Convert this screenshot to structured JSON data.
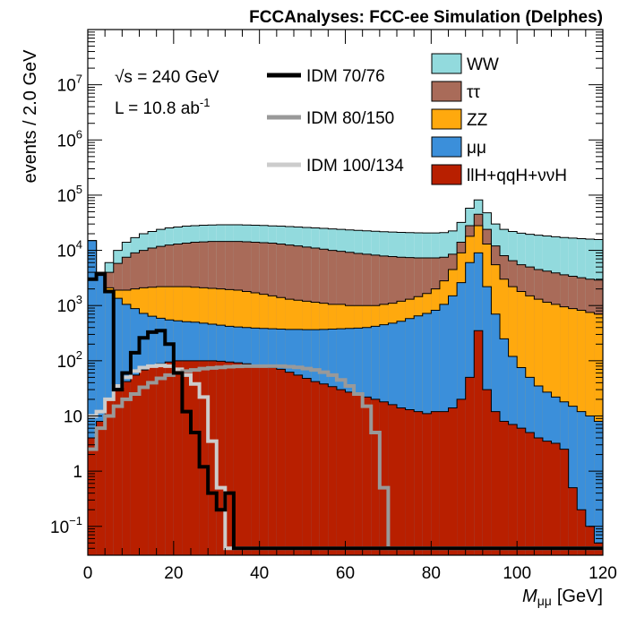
{
  "chart_data": {
    "type": "histogram",
    "title": "FCCAnalyses: FCC-ee Simulation (Delphes)",
    "xlabel": "M",
    "xlabel_sub": "μμ",
    "xlabel_unit": "[GeV]",
    "ylabel": "events / 2.0 GeV",
    "xlim": [
      0,
      120
    ],
    "ylim": [
      0.03,
      100000000
    ],
    "yscale": "log",
    "bin_width": 2,
    "x_ticks": [
      "0",
      "20",
      "40",
      "60",
      "80",
      "100",
      "120"
    ],
    "y_ticks": [
      {
        "v": 0.1,
        "base": "10",
        "exp": "−1"
      },
      {
        "v": 1,
        "base": "1",
        "exp": ""
      },
      {
        "v": 10,
        "base": "10",
        "exp": ""
      },
      {
        "v": 100,
        "base": "10",
        "exp": "2"
      },
      {
        "v": 1000,
        "base": "10",
        "exp": "3"
      },
      {
        "v": 10000,
        "base": "10",
        "exp": "4"
      },
      {
        "v": 100000,
        "base": "10",
        "exp": "5"
      },
      {
        "v": 1000000,
        "base": "10",
        "exp": "6"
      },
      {
        "v": 10000000,
        "base": "10",
        "exp": "7"
      }
    ],
    "annotations": {
      "energy_prefix": "√s",
      "energy_value": " = 240 GeV",
      "lumi": "L = 10.8 ab",
      "lumi_exp": "-1"
    },
    "stack_order": [
      "llH+qqH+ννH",
      "μμ",
      "ZZ",
      "ττ",
      "WW"
    ],
    "stacked_cumulative": [
      {
        "name": "llH+qqH+ννH",
        "color": "#b81f00",
        "values": [
          4,
          8,
          20,
          30,
          42,
          55,
          68,
          80,
          88,
          95,
          100,
          100,
          100,
          100,
          100,
          98,
          95,
          92,
          88,
          84,
          80,
          75,
          70,
          62,
          55,
          48,
          42,
          38,
          34,
          30,
          27,
          24,
          22,
          20,
          18,
          16,
          14,
          13,
          12,
          11,
          12,
          12,
          14,
          20,
          50,
          350,
          30,
          12,
          8,
          7,
          6,
          5,
          4,
          3.5,
          3.2,
          2.5,
          0.5,
          0.2,
          0.1,
          0.05
        ]
      },
      {
        "name": "μμ",
        "color": "#3b8fda",
        "values": [
          15000,
          3500,
          1700,
          1350,
          1050,
          880,
          720,
          640,
          590,
          550,
          530,
          510,
          500,
          480,
          460,
          440,
          420,
          410,
          400,
          390,
          385,
          380,
          375,
          370,
          370,
          365,
          365,
          370,
          375,
          380,
          385,
          390,
          400,
          420,
          450,
          480,
          520,
          580,
          650,
          720,
          820,
          1050,
          1500,
          2600,
          6000,
          9000,
          2200,
          700,
          250,
          120,
          75,
          50,
          35,
          27,
          22,
          18,
          15,
          12,
          10,
          8
        ]
      },
      {
        "name": "ZZ",
        "color": "#ffa90e",
        "values": [
          15000,
          3600,
          2100,
          1900,
          1900,
          2000,
          2100,
          2150,
          2200,
          2200,
          2200,
          2200,
          2150,
          2100,
          2050,
          2000,
          1950,
          1900,
          1800,
          1700,
          1600,
          1500,
          1400,
          1300,
          1250,
          1200,
          1150,
          1100,
          1050,
          1050,
          1000,
          1000,
          1000,
          1000,
          1050,
          1100,
          1200,
          1300,
          1450,
          1650,
          2000,
          2800,
          4500,
          9000,
          18000,
          28000,
          13000,
          5500,
          3000,
          2200,
          1800,
          1500,
          1300,
          1150,
          1050,
          950,
          880,
          820,
          750,
          700
        ]
      },
      {
        "name": "ττ",
        "color": "#a96b59",
        "values": [
          15000,
          3700,
          4000,
          5800,
          7500,
          9000,
          10000,
          11000,
          11800,
          12500,
          13000,
          13500,
          14000,
          14200,
          14500,
          14500,
          14500,
          14500,
          14300,
          14000,
          13800,
          13500,
          13000,
          12500,
          12000,
          11500,
          11000,
          10500,
          10000,
          9600,
          9200,
          8800,
          8500,
          8200,
          7900,
          7700,
          7500,
          7400,
          7300,
          7300,
          7300,
          7500,
          8500,
          14000,
          28000,
          45000,
          24000,
          12000,
          8000,
          6500,
          5500,
          5000,
          4500,
          4200,
          3900,
          3600,
          3400,
          3200,
          3000,
          2900
        ]
      },
      {
        "name": "WW",
        "color": "#92dadd",
        "values": [
          15000,
          3700,
          6000,
          10000,
          14000,
          17000,
          20000,
          22000,
          24000,
          25500,
          26500,
          27500,
          28000,
          28500,
          28800,
          29000,
          29000,
          29000,
          28800,
          28500,
          28200,
          27800,
          27500,
          27000,
          26500,
          26000,
          25500,
          25000,
          24500,
          24000,
          23500,
          23000,
          22600,
          22200,
          21800,
          21500,
          21200,
          21000,
          20800,
          20700,
          20700,
          21000,
          22500,
          32000,
          58000,
          82000,
          48000,
          30000,
          24000,
          22000,
          20500,
          19500,
          18800,
          18200,
          17600,
          17100,
          16700,
          16300,
          16000,
          15700
        ]
      }
    ],
    "signals": [
      {
        "name": "IDM 70/76",
        "color": "#000000",
        "width": 4,
        "values": [
          3000,
          3800,
          1800,
          30,
          60,
          140,
          260,
          330,
          350,
          200,
          60,
          12,
          5,
          1.2,
          0.4,
          0.2,
          0.4,
          0.04,
          0.04,
          0.04,
          0.04,
          0.04,
          0.04,
          0.04,
          0.04,
          0.04,
          0.04,
          0.04,
          0.04,
          0.04,
          0.04,
          0.04,
          0.04,
          0.04,
          0.04,
          0.04,
          0.04,
          0.04,
          0.04,
          0.04,
          0.04,
          0.04,
          0.04,
          0.04,
          0.04,
          0.04,
          0.04,
          0.04,
          0.04,
          0.04,
          0.04,
          0.04,
          0.04,
          0.04,
          0.04,
          0.04,
          0.04,
          0.04,
          0.04,
          0.04
        ]
      },
      {
        "name": "IDM 80/150",
        "color": "#999999",
        "width": 4,
        "values": [
          2.5,
          6,
          10,
          15,
          20,
          25,
          33,
          40,
          48,
          55,
          60,
          65,
          68,
          72,
          74,
          76,
          78,
          79,
          80,
          80,
          80,
          80,
          80,
          78,
          76,
          72,
          68,
          62,
          55,
          45,
          35,
          25,
          15,
          5,
          0.5,
          0.04,
          0.04,
          0.04,
          0.04,
          0.04,
          0.04,
          0.04,
          0.04,
          0.04,
          0.04,
          0.04,
          0.04,
          0.04,
          0.04,
          0.04,
          0.04,
          0.04,
          0.04,
          0.04,
          0.04,
          0.04,
          0.04,
          0.04,
          0.04,
          0.04
        ]
      },
      {
        "name": "IDM 100/134",
        "color": "#cccccc",
        "width": 4,
        "values": [
          10,
          12,
          20,
          35,
          50,
          65,
          75,
          80,
          82,
          80,
          70,
          55,
          38,
          22,
          3.5,
          0.5,
          0.04,
          0.04,
          0.04,
          0.04,
          0.04,
          0.04,
          0.04,
          0.04,
          0.04,
          0.04,
          0.04,
          0.04,
          0.04,
          0.04,
          0.04,
          0.04,
          0.04,
          0.04,
          0.04,
          0.04,
          0.04,
          0.04,
          0.04,
          0.04,
          0.04,
          0.04,
          0.04,
          0.04,
          0.04,
          0.04,
          0.04,
          0.04,
          0.04,
          0.04,
          0.04,
          0.04,
          0.04,
          0.04,
          0.04,
          0.04,
          0.04,
          0.04,
          0.04,
          0.04
        ]
      }
    ],
    "legend_background": [
      {
        "name": "WW",
        "color": "#92dadd"
      },
      {
        "name": "ττ",
        "color": "#a96b59"
      },
      {
        "name": "ZZ",
        "color": "#ffa90e"
      },
      {
        "name": "μμ",
        "color": "#3b8fda"
      },
      {
        "name": "llH+qqH+ννH",
        "color": "#b81f00"
      }
    ],
    "legend_signals": [
      {
        "name": "IDM 70/76",
        "color": "#000000"
      },
      {
        "name": "IDM 80/150",
        "color": "#999999"
      },
      {
        "name": "IDM 100/134",
        "color": "#cccccc"
      }
    ]
  }
}
